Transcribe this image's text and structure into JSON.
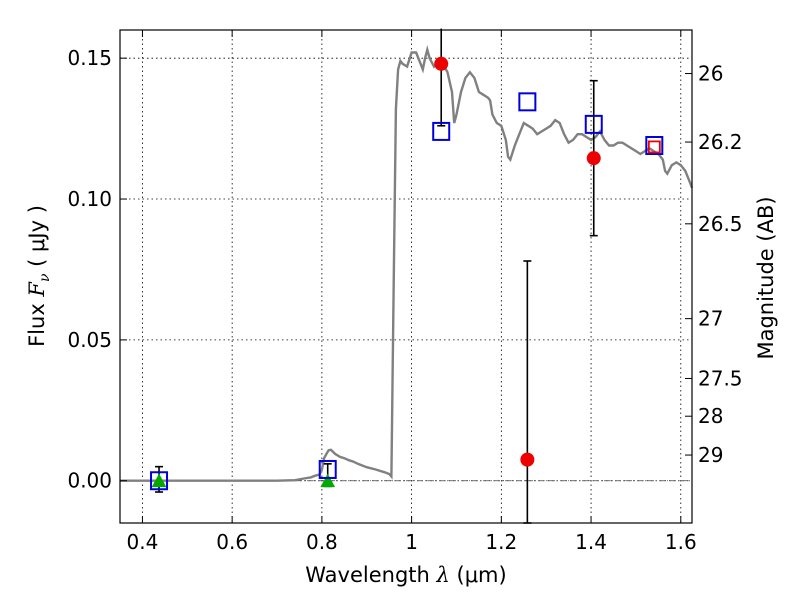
{
  "chart_data": {
    "type": "scatter",
    "title": "",
    "xlabel": "Wavelength  λ (μm)",
    "ylabel": "Flux  F_ν  ( μJy )",
    "ylabel_parts": {
      "pre": "Flux  ",
      "sym": "F",
      "sub": "ν",
      "post": "  ( μJy )"
    },
    "xlabel_parts": {
      "pre": "Wavelength  ",
      "sym": "λ",
      "post": " (μm)"
    },
    "y2label": "Magnitude (AB)",
    "xlim": [
      0.35,
      1.625
    ],
    "ylim": [
      -0.015,
      0.16
    ],
    "grid": true,
    "x_ticks": [
      {
        "value": 0.4,
        "label": "0.4"
      },
      {
        "value": 0.6,
        "label": "0.6"
      },
      {
        "value": 0.8,
        "label": "0.8"
      },
      {
        "value": 1.0,
        "label": "1"
      },
      {
        "value": 1.2,
        "label": "1.2"
      },
      {
        "value": 1.4,
        "label": "1.4"
      },
      {
        "value": 1.6,
        "label": "1.6"
      }
    ],
    "y_ticks": [
      {
        "value": 0.0,
        "label": "0.00"
      },
      {
        "value": 0.05,
        "label": "0.05"
      },
      {
        "value": 0.1,
        "label": "0.10"
      },
      {
        "value": 0.15,
        "label": "0.15"
      }
    ],
    "y2_ticks": [
      {
        "mag": 26,
        "label": "26"
      },
      {
        "mag": 26.2,
        "label": "26.2"
      },
      {
        "mag": 26.5,
        "label": "26.5"
      },
      {
        "mag": 27,
        "label": "27"
      },
      {
        "mag": 27.5,
        "label": "27.5"
      },
      {
        "mag": 28,
        "label": "28"
      },
      {
        "mag": 29,
        "label": "29"
      }
    ],
    "zero_line": 0.0,
    "series": [
      {
        "kind": "line",
        "color": "#808080",
        "points": [
          [
            0.35,
            0.0
          ],
          [
            0.5,
            0.0
          ],
          [
            0.6,
            0.0
          ],
          [
            0.7,
            0.0
          ],
          [
            0.74,
            0.0002
          ],
          [
            0.76,
            0.0008
          ],
          [
            0.775,
            0.0012
          ],
          [
            0.785,
            0.0018
          ],
          [
            0.795,
            0.0022
          ],
          [
            0.8,
            0.004
          ],
          [
            0.805,
            0.008
          ],
          [
            0.81,
            0.0095
          ],
          [
            0.815,
            0.0108
          ],
          [
            0.82,
            0.011
          ],
          [
            0.83,
            0.0095
          ],
          [
            0.84,
            0.0085
          ],
          [
            0.85,
            0.008
          ],
          [
            0.86,
            0.0073
          ],
          [
            0.87,
            0.0068
          ],
          [
            0.88,
            0.006
          ],
          [
            0.9,
            0.0048
          ],
          [
            0.92,
            0.004
          ],
          [
            0.94,
            0.003
          ],
          [
            0.95,
            0.0024
          ],
          [
            0.955,
            0.0015
          ],
          [
            0.96,
            0.07
          ],
          [
            0.965,
            0.132
          ],
          [
            0.97,
            0.146
          ],
          [
            0.975,
            0.149
          ],
          [
            0.98,
            0.148
          ],
          [
            0.99,
            0.147
          ],
          [
            1.0,
            0.152
          ],
          [
            1.01,
            0.152
          ],
          [
            1.02,
            0.148
          ],
          [
            1.025,
            0.146
          ],
          [
            1.03,
            0.15
          ],
          [
            1.035,
            0.153
          ],
          [
            1.04,
            0.15
          ],
          [
            1.05,
            0.147
          ],
          [
            1.06,
            0.149
          ],
          [
            1.07,
            0.148
          ],
          [
            1.08,
            0.145
          ],
          [
            1.09,
            0.138
          ],
          [
            1.095,
            0.127
          ],
          [
            1.1,
            0.13
          ],
          [
            1.11,
            0.138
          ],
          [
            1.12,
            0.143
          ],
          [
            1.13,
            0.145
          ],
          [
            1.14,
            0.143
          ],
          [
            1.15,
            0.138
          ],
          [
            1.16,
            0.137
          ],
          [
            1.17,
            0.136
          ],
          [
            1.175,
            0.135
          ],
          [
            1.18,
            0.13
          ],
          [
            1.19,
            0.127
          ],
          [
            1.2,
            0.126
          ],
          [
            1.21,
            0.121
          ],
          [
            1.215,
            0.115
          ],
          [
            1.22,
            0.114
          ],
          [
            1.23,
            0.119
          ],
          [
            1.24,
            0.123
          ],
          [
            1.25,
            0.127
          ],
          [
            1.26,
            0.126
          ],
          [
            1.27,
            0.125
          ],
          [
            1.28,
            0.123
          ],
          [
            1.29,
            0.124
          ],
          [
            1.3,
            0.125
          ],
          [
            1.31,
            0.126
          ],
          [
            1.32,
            0.128
          ],
          [
            1.33,
            0.127
          ],
          [
            1.34,
            0.123
          ],
          [
            1.35,
            0.12
          ],
          [
            1.36,
            0.121
          ],
          [
            1.37,
            0.123
          ],
          [
            1.38,
            0.123
          ],
          [
            1.39,
            0.122
          ],
          [
            1.4,
            0.121
          ],
          [
            1.41,
            0.122
          ],
          [
            1.42,
            0.124
          ],
          [
            1.43,
            0.121
          ],
          [
            1.44,
            0.119
          ],
          [
            1.45,
            0.119
          ],
          [
            1.46,
            0.12
          ],
          [
            1.47,
            0.12
          ],
          [
            1.48,
            0.119
          ],
          [
            1.5,
            0.117
          ],
          [
            1.51,
            0.116
          ],
          [
            1.52,
            0.117
          ],
          [
            1.53,
            0.118
          ],
          [
            1.54,
            0.117
          ],
          [
            1.55,
            0.116
          ],
          [
            1.56,
            0.114
          ],
          [
            1.565,
            0.11
          ],
          [
            1.57,
            0.109
          ],
          [
            1.58,
            0.112
          ],
          [
            1.59,
            0.113
          ],
          [
            1.6,
            0.112
          ],
          [
            1.61,
            0.11
          ],
          [
            1.62,
            0.106
          ],
          [
            1.625,
            0.104
          ]
        ]
      },
      {
        "kind": "errorbar",
        "color": "#000000",
        "points": [
          {
            "x": 0.437,
            "ylow": -0.004,
            "yhigh": 0.005
          },
          {
            "x": 0.813,
            "ylow": -0.002,
            "yhigh": 0.006
          },
          {
            "x": 1.066,
            "ylow": 0.126,
            "yhigh": 0.1605
          },
          {
            "x": 1.258,
            "ylow": -0.015,
            "yhigh": 0.078
          },
          {
            "x": 1.406,
            "ylow": 0.087,
            "yhigh": 0.142
          }
        ]
      },
      {
        "kind": "marker",
        "marker": "triangle",
        "color": "#00aa00",
        "points": [
          [
            0.437,
            -0.0003
          ],
          [
            0.813,
            -0.0003
          ]
        ]
      },
      {
        "kind": "marker",
        "marker": "circle",
        "color": "#ee0000",
        "points": [
          [
            1.066,
            0.148
          ],
          [
            1.258,
            0.0075
          ],
          [
            1.406,
            0.1145
          ]
        ]
      },
      {
        "kind": "marker",
        "marker": "square-open",
        "color": "#0000dd",
        "points": [
          [
            0.437,
            0.0
          ],
          [
            0.813,
            0.004
          ],
          [
            1.066,
            0.124
          ],
          [
            1.258,
            0.1345
          ],
          [
            1.406,
            0.1265
          ],
          [
            1.541,
            0.119
          ]
        ]
      },
      {
        "kind": "marker",
        "marker": "square-open-small",
        "color": "#ee0000",
        "points": [
          [
            1.541,
            0.1185
          ]
        ]
      }
    ]
  }
}
